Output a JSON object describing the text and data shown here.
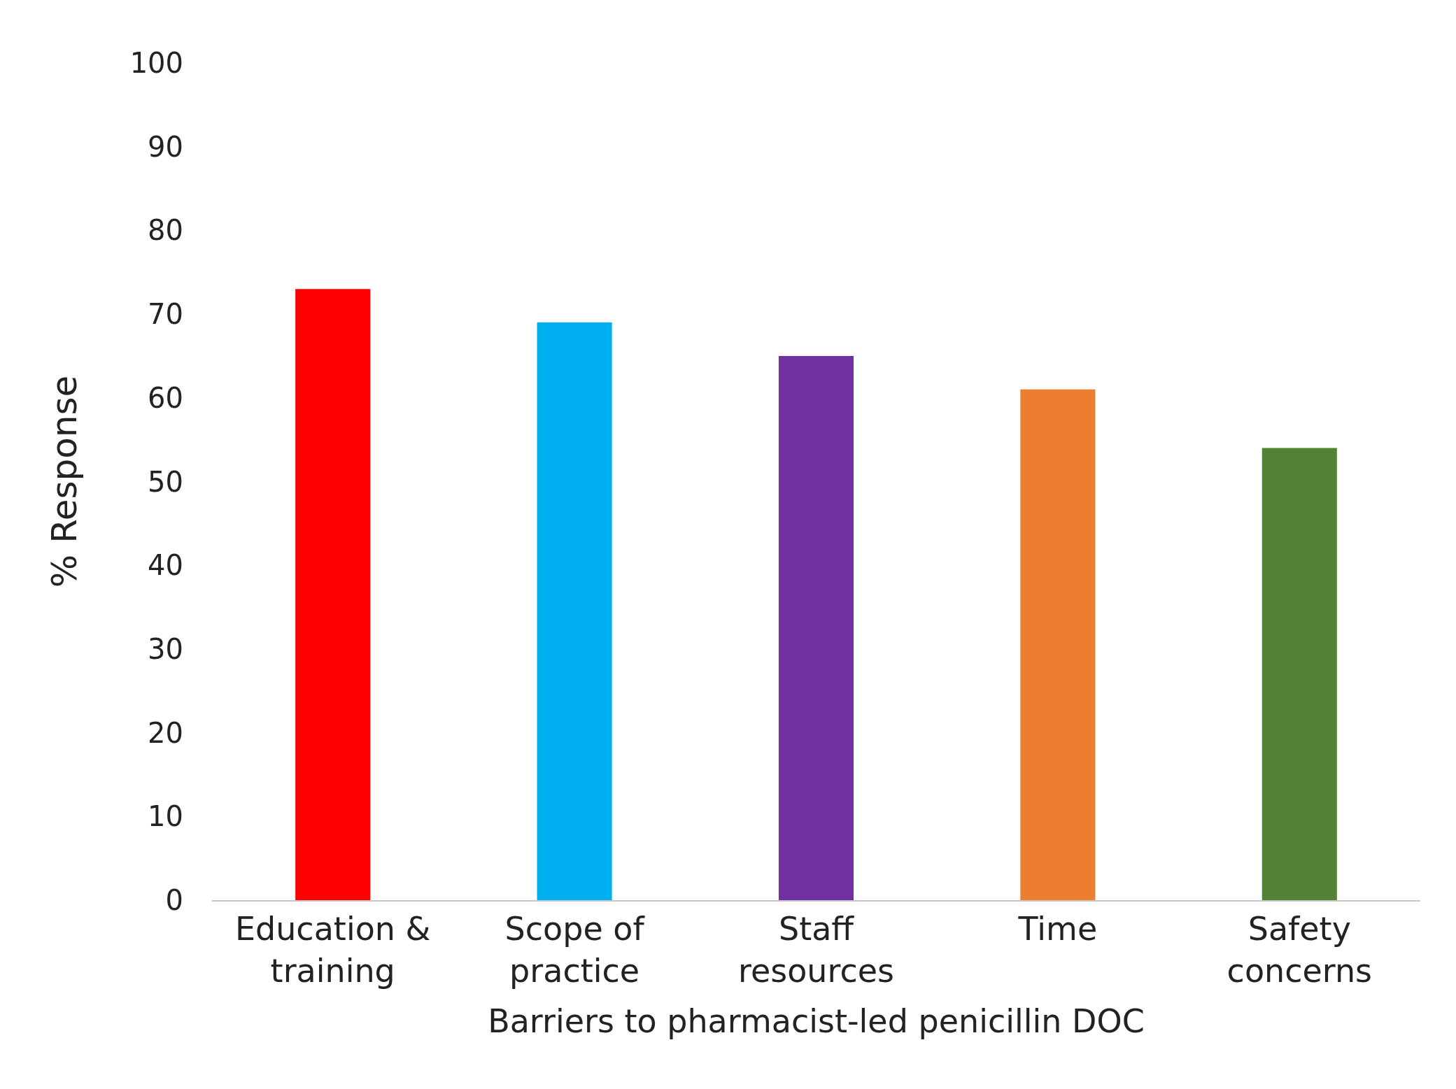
{
  "chart_data": {
    "type": "bar",
    "xlabel": "Barriers to pharmacist-led penicillin DOC",
    "ylabel": "% Response",
    "categories": [
      "Education &\ntraining",
      "Scope of\npractice",
      "Staff\nresources",
      "Time",
      "Safety\nconcerns"
    ],
    "values": [
      73,
      69,
      65,
      61,
      54
    ],
    "colors": [
      "#ff0000",
      "#00b0f0",
      "#7030a0",
      "#ed7d31",
      "#548235"
    ],
    "ylim": [
      0,
      100
    ],
    "yticks": [
      0,
      10,
      20,
      30,
      40,
      50,
      60,
      70,
      80,
      90,
      100
    ],
    "grid": false,
    "legend": false
  }
}
